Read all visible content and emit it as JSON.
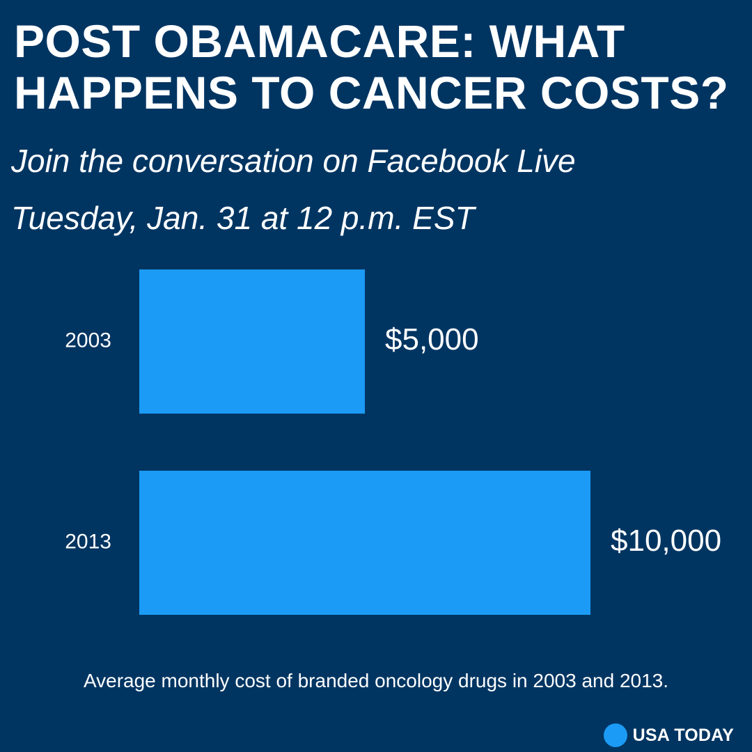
{
  "title_lines": [
    "POST OBAMACARE: WHAT",
    "HAPPENS TO CANCER COSTS?"
  ],
  "subtitle_lines": [
    "Join the conversation on Facebook Live",
    "Tuesday, Jan. 31 at 12 p.m. EST"
  ],
  "caption": "Average monthly cost of branded oncology  drugs in 2003 and 2013.",
  "brand": {
    "name": "USA TODAY",
    "dot_color": "#1b9bf5"
  },
  "colors": {
    "background": "#003562",
    "bar": "#1b9bf5",
    "text": "#ffffff"
  },
  "chart_data": {
    "type": "bar",
    "orientation": "horizontal",
    "title": "",
    "xlabel": "",
    "ylabel": "",
    "categories": [
      "2003",
      "2013"
    ],
    "values": [
      5000,
      10000
    ],
    "value_labels": [
      "$5,000",
      "$10,000"
    ],
    "xlim": [
      0,
      10000
    ],
    "grid": false,
    "legend": "none"
  }
}
